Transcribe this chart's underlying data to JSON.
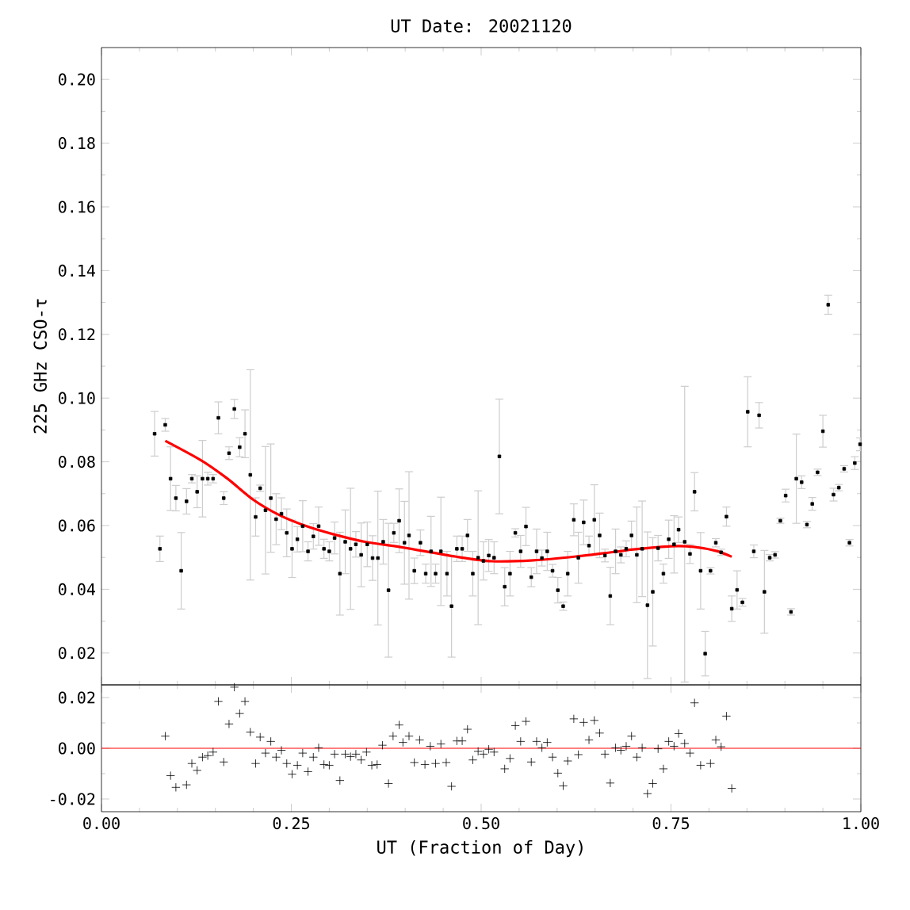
{
  "chart_data": [
    {
      "type": "scatter",
      "title": "UT Date: 20021120",
      "ylabel": "225 GHz CSO-τ",
      "xlim": [
        0,
        1
      ],
      "ylim": [
        0.01,
        0.21
      ],
      "xticks": [
        {
          "value": 0,
          "label": null
        },
        {
          "value": 0.25,
          "label": null
        },
        {
          "value": 0.5,
          "label": null
        },
        {
          "value": 0.75,
          "label": null
        },
        {
          "value": 1,
          "label": null
        }
      ],
      "yticks": [
        0.02,
        0.04,
        0.06,
        0.08,
        {
          "value": 0.1,
          "label": "0.10"
        },
        0.12,
        0.14,
        0.16,
        0.18,
        {
          "value": 0.2,
          "label": "0.20"
        }
      ],
      "tick_labels": "y",
      "series": [
        {
          "color": "#000000",
          "marker": "square",
          "x": [
            0.07,
            0.077,
            0.084,
            0.091,
            0.098,
            0.105,
            0.112,
            0.119,
            0.126,
            0.133,
            0.14,
            0.147,
            0.154,
            0.161,
            0.168,
            0.175,
            0.182,
            0.189,
            0.196,
            0.203,
            0.209,
            0.216,
            0.223,
            0.23,
            0.237,
            0.244,
            0.251,
            0.258,
            0.265,
            0.272,
            0.279,
            0.286,
            0.293,
            0.3,
            0.307,
            0.314,
            0.321,
            0.328,
            0.335,
            0.342,
            0.35,
            0.357,
            0.364,
            0.371,
            0.378,
            0.385,
            0.392,
            0.399,
            0.405,
            0.412,
            0.42,
            0.427,
            0.434,
            0.44,
            0.447,
            0.455,
            0.461,
            0.468,
            0.475,
            0.482,
            0.489,
            0.496,
            0.503,
            0.51,
            0.517,
            0.524,
            0.531,
            0.538,
            0.545,
            0.552,
            0.559,
            0.566,
            0.573,
            0.58,
            0.587,
            0.594,
            0.601,
            0.608,
            0.614,
            0.622,
            0.628,
            0.635,
            0.642,
            0.649,
            0.656,
            0.663,
            0.67,
            0.677,
            0.684,
            0.691,
            0.698,
            0.705,
            0.712,
            0.719,
            0.726,
            0.733,
            0.74,
            0.747,
            0.754,
            0.76,
            0.768,
            0.775,
            0.781,
            0.789,
            0.795,
            0.802,
            0.809,
            0.816,
            0.823,
            0.83,
            0.837,
            0.844,
            0.851,
            0.859,
            0.866,
            0.873,
            0.88,
            0.887,
            0.894,
            0.901,
            0.908,
            0.915,
            0.922,
            0.929,
            0.936,
            0.943,
            0.95,
            0.957,
            0.964,
            0.971,
            0.978,
            0.985,
            0.992,
            0.999
          ],
          "values": [
            0.0888,
            0.0527,
            0.0916,
            0.0747,
            0.0686,
            0.0458,
            0.0676,
            0.0747,
            0.0706,
            0.0747,
            0.0747,
            0.0747,
            0.0938,
            0.0686,
            0.0827,
            0.0966,
            0.0846,
            0.0888,
            0.0759,
            0.0627,
            0.0717,
            0.0648,
            0.0686,
            0.062,
            0.0637,
            0.0577,
            0.0527,
            0.0557,
            0.0598,
            0.0519,
            0.0566,
            0.0598,
            0.0527,
            0.0519,
            0.0561,
            0.0449,
            0.0549,
            0.0527,
            0.0541,
            0.0508,
            0.0541,
            0.0498,
            0.0498,
            0.0549,
            0.0397,
            0.0577,
            0.0615,
            0.0546,
            0.0569,
            0.0458,
            0.0546,
            0.0449,
            0.0519,
            0.0449,
            0.0519,
            0.0449,
            0.0347,
            0.0527,
            0.0527,
            0.0569,
            0.0449,
            0.0499,
            0.0489,
            0.0506,
            0.0499,
            0.0817,
            0.0408,
            0.0449,
            0.0577,
            0.0519,
            0.0597,
            0.0438,
            0.0519,
            0.0498,
            0.0519,
            0.0458,
            0.0397,
            0.0347,
            0.0449,
            0.0618,
            0.0499,
            0.061,
            0.0537,
            0.0618,
            0.0569,
            0.0506,
            0.0379,
            0.0519,
            0.0508,
            0.0527,
            0.0569,
            0.0508,
            0.0527,
            0.035,
            0.0392,
            0.0529,
            0.0449,
            0.0557,
            0.0541,
            0.0587,
            0.0549,
            0.0511,
            0.0706,
            0.0458,
            0.0198,
            0.0458,
            0.0546,
            0.0516,
            0.0628,
            0.0339,
            0.0398,
            0.0359,
            0.0957,
            0.0519,
            0.0946,
            0.0392,
            0.0499,
            0.0508,
            0.0615,
            0.0694,
            0.0329,
            0.0747,
            0.0736,
            0.0603,
            0.0668,
            0.0767,
            0.0896,
            0.1293,
            0.0697,
            0.0719,
            0.0778,
            0.0546,
            0.0796,
            0.0855
          ],
          "errors": [
            0.007,
            0.004,
            0.002,
            0.01,
            0.004,
            0.012,
            0.004,
            0.0013,
            0.005,
            0.012,
            0.002,
            0.0013,
            0.005,
            0.002,
            0.002,
            0.003,
            0.003,
            0.0075,
            0.033,
            0.006,
            0.001,
            0.02,
            0.017,
            0.008,
            0.005,
            0.0075,
            0.009,
            0.004,
            0.008,
            0.003,
            0.004,
            0.006,
            0.003,
            0.003,
            0.005,
            0.013,
            0.01,
            0.019,
            0.004,
            0.01,
            0.007,
            0.007,
            0.021,
            0.007,
            0.021,
            0.003,
            0.01,
            0.013,
            0.02,
            0.004,
            0.004,
            0.003,
            0.011,
            0.003,
            0.017,
            0.007,
            0.016,
            0.004,
            0.004,
            0.005,
            0.007,
            0.021,
            0.006,
            0.005,
            0.005,
            0.018,
            0.006,
            0.007,
            0.0013,
            0.005,
            0.006,
            0.003,
            0.007,
            0.0025,
            0.006,
            0.002,
            0.004,
            0.0013,
            0.007,
            0.005,
            0.008,
            0.007,
            0.003,
            0.011,
            0.007,
            0.002,
            0.009,
            0.007,
            0.0025,
            0.0025,
            0.0045,
            0.015,
            0.015,
            0.023,
            0.017,
            0.004,
            0.003,
            0.006,
            0.009,
            0.004,
            [
              0.0109,
              0.1037
            ],
            0.003,
            0.006,
            0.012,
            0.007,
            0.001,
            0.0013,
            0.001,
            0.003,
            0.004,
            0.006,
            0.0012,
            0.011,
            0.002,
            0.004,
            0.013,
            0.001,
            0.001,
            0.0008,
            0.002,
            0.001,
            0.014,
            0.002,
            0.001,
            0.002,
            0.001,
            0.005,
            0.003,
            0.002,
            0.001,
            0.001,
            0.001,
            0.002,
            0.002
          ]
        },
        {
          "type": "line",
          "color": "#ff0000",
          "marker": "none",
          "x": [
            0.084,
            0.131,
            0.166,
            0.2,
            0.235,
            0.27,
            0.305,
            0.347,
            0.395,
            0.465,
            0.514,
            0.569,
            0.625,
            0.681,
            0.7,
            0.75,
            0.78,
            0.81,
            0.83
          ],
          "values": [
            0.0866,
            0.0805,
            0.0747,
            0.0681,
            0.0632,
            0.0598,
            0.0573,
            0.0549,
            0.0532,
            0.0503,
            0.0488,
            0.0491,
            0.0503,
            0.0519,
            0.0525,
            0.0535,
            0.0533,
            0.052,
            0.0502
          ]
        }
      ]
    },
    {
      "type": "scatter",
      "xlabel": "UT (Fraction of Day)",
      "xlim": [
        0,
        1
      ],
      "ylim": [
        -0.025,
        0.025
      ],
      "xticks": [
        {
          "value": 0,
          "label": "0.00"
        },
        {
          "value": 0.25,
          "label": "0.25"
        },
        {
          "value": 0.5,
          "label": "0.50"
        },
        {
          "value": 0.75,
          "label": "0.75"
        },
        {
          "value": 1,
          "label": "1.00"
        }
      ],
      "yticks": [
        {
          "value": -0.02,
          "label": "-0.02"
        },
        {
          "value": 0,
          "label": "0.00"
        },
        0.02
      ],
      "ref_lines": [
        {
          "axis": "y",
          "value": 0,
          "color": "#ff0000"
        }
      ],
      "series": [
        {
          "color": "#000000",
          "marker": "cross",
          "x": [
            0.084,
            0.091,
            0.098,
            0.112,
            0.119,
            0.126,
            0.133,
            0.14,
            0.147,
            0.154,
            0.161,
            0.168,
            0.175,
            0.182,
            0.189,
            0.196,
            0.203,
            0.209,
            0.216,
            0.223,
            0.23,
            0.237,
            0.244,
            0.251,
            0.258,
            0.265,
            0.272,
            0.279,
            0.286,
            0.293,
            0.3,
            0.307,
            0.314,
            0.321,
            0.328,
            0.335,
            0.342,
            0.349,
            0.356,
            0.363,
            0.37,
            0.378,
            0.384,
            0.392,
            0.397,
            0.405,
            0.412,
            0.419,
            0.426,
            0.433,
            0.44,
            0.447,
            0.454,
            0.461,
            0.468,
            0.475,
            0.482,
            0.489,
            0.496,
            0.503,
            0.51,
            0.517,
            0.531,
            0.538,
            0.545,
            0.552,
            0.559,
            0.566,
            0.573,
            0.58,
            0.587,
            0.594,
            0.601,
            0.608,
            0.614,
            0.622,
            0.628,
            0.635,
            0.642,
            0.649,
            0.656,
            0.663,
            0.67,
            0.677,
            0.684,
            0.691,
            0.698,
            0.705,
            0.712,
            0.719,
            0.726,
            0.733,
            0.74,
            0.747,
            0.754,
            0.76,
            0.768,
            0.775,
            0.781,
            0.789,
            0.802,
            0.809,
            0.816,
            0.823,
            0.83
          ],
          "values": [
            0.0048,
            -0.0108,
            -0.0154,
            -0.0144,
            -0.006,
            -0.0087,
            -0.0035,
            -0.0029,
            -0.0015,
            0.0185,
            -0.0054,
            0.0096,
            0.0241,
            0.0137,
            0.0185,
            0.0064,
            -0.006,
            0.0044,
            -0.0019,
            0.0027,
            -0.0035,
            -0.0008,
            -0.006,
            -0.0102,
            -0.0067,
            -0.0019,
            -0.0092,
            -0.0035,
            0.0002,
            -0.0064,
            -0.0067,
            -0.0023,
            -0.0127,
            -0.0023,
            -0.0033,
            -0.0023,
            -0.0046,
            -0.0015,
            -0.0067,
            -0.0064,
            0.0012,
            -0.0139,
            0.0048,
            0.0092,
            0.0023,
            0.0048,
            -0.0056,
            0.0033,
            -0.0064,
            0.0008,
            -0.006,
            0.0017,
            -0.0056,
            -0.015,
            0.0029,
            0.0029,
            0.0075,
            -0.0046,
            -0.0012,
            -0.0023,
            -0.0004,
            -0.0015,
            -0.0081,
            -0.004,
            0.0089,
            0.0027,
            0.0106,
            -0.0054,
            0.0027,
            0.0002,
            0.0023,
            -0.0035,
            -0.0098,
            -0.0148,
            -0.005,
            0.0116,
            -0.0025,
            0.0102,
            0.0033,
            0.011,
            0.006,
            -0.0023,
            -0.0137,
            0.0002,
            -0.0008,
            0.0008,
            0.0048,
            -0.0035,
            0.0002,
            -0.0179,
            -0.0139,
            -0.0002,
            -0.0081,
            0.0027,
            0.0008,
            0.0058,
            0.0019,
            -0.0019,
            0.0179,
            -0.0067,
            -0.006,
            0.0033,
            0.0006,
            0.0127,
            -0.0158
          ]
        }
      ]
    }
  ]
}
